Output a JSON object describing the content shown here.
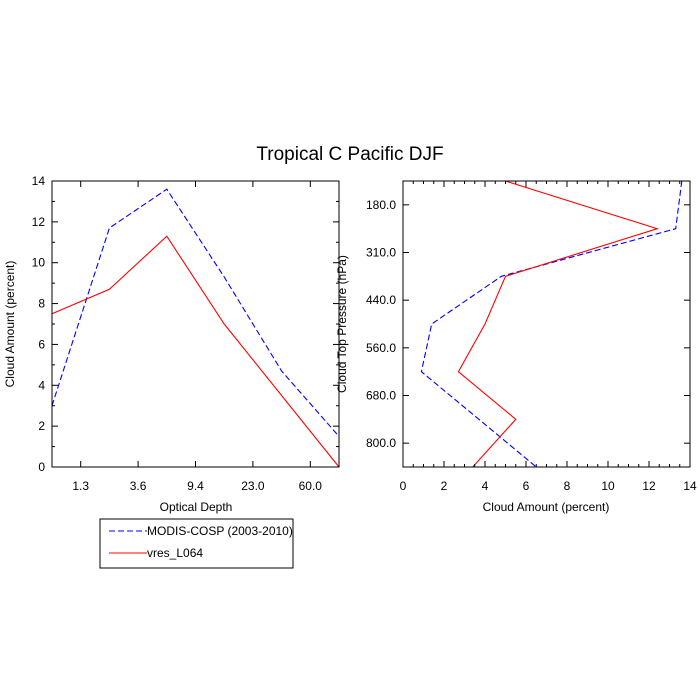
{
  "figure": {
    "title": "Tropical C Pacific DJF"
  },
  "legend": {
    "placement": "below-left",
    "entries": [
      {
        "label": "MODIS-COSP (2003-2010)",
        "color": "#0000ff",
        "dash": "dashed"
      },
      {
        "label": "vres_L064",
        "color": "#ff0000",
        "dash": "solid"
      }
    ]
  },
  "chart_data": [
    {
      "type": "line",
      "xlabel": "Optical Depth",
      "ylabel": "Cloud Amount (percent)",
      "x_tick_labels": [
        "1.3",
        "3.6",
        "9.4",
        "23.0",
        "60.0"
      ],
      "y_ticks": [
        0,
        2,
        4,
        6,
        8,
        10,
        12,
        14
      ],
      "x_bins": 5,
      "ylim": [
        0,
        14
      ],
      "grid": false,
      "series": [
        {
          "name": "MODIS-COSP (2003-2010)",
          "color": "#0000ff",
          "dash": "dashed",
          "x": [
            0,
            1,
            2,
            3,
            4,
            5
          ],
          "values": [
            3.0,
            11.7,
            13.6,
            9.3,
            4.7,
            1.5
          ]
        },
        {
          "name": "vres_L064",
          "color": "#ff0000",
          "dash": "solid",
          "x": [
            0,
            1,
            2,
            3,
            4,
            5
          ],
          "values": [
            7.5,
            8.7,
            11.3,
            7.0,
            3.5,
            0.0
          ]
        }
      ]
    },
    {
      "type": "line",
      "xlabel": "Cloud Amount (percent)",
      "ylabel": "Cloud Top Pressure (hPa)",
      "x_ticks": [
        0,
        2,
        4,
        6,
        8,
        10,
        12,
        14
      ],
      "y_tick_labels": [
        "180.0",
        "310.0",
        "440.0",
        "560.0",
        "680.0",
        "800.0"
      ],
      "xlim": [
        0,
        14
      ],
      "y_levels": 7,
      "y_reversed": true,
      "grid": false,
      "series": [
        {
          "name": "MODIS-COSP (2003-2010)",
          "color": "#0000ff",
          "dash": "dashed",
          "y": [
            0,
            1,
            2,
            3,
            4,
            5,
            6
          ],
          "values": [
            13.6,
            13.3,
            4.8,
            1.4,
            0.9,
            3.7,
            6.5
          ]
        },
        {
          "name": "vres_L064",
          "color": "#ff0000",
          "dash": "solid",
          "y": [
            0,
            1,
            2,
            3,
            4,
            5,
            6
          ],
          "values": [
            5.0,
            12.4,
            5.0,
            4.0,
            2.7,
            5.5,
            3.4
          ]
        }
      ]
    }
  ]
}
